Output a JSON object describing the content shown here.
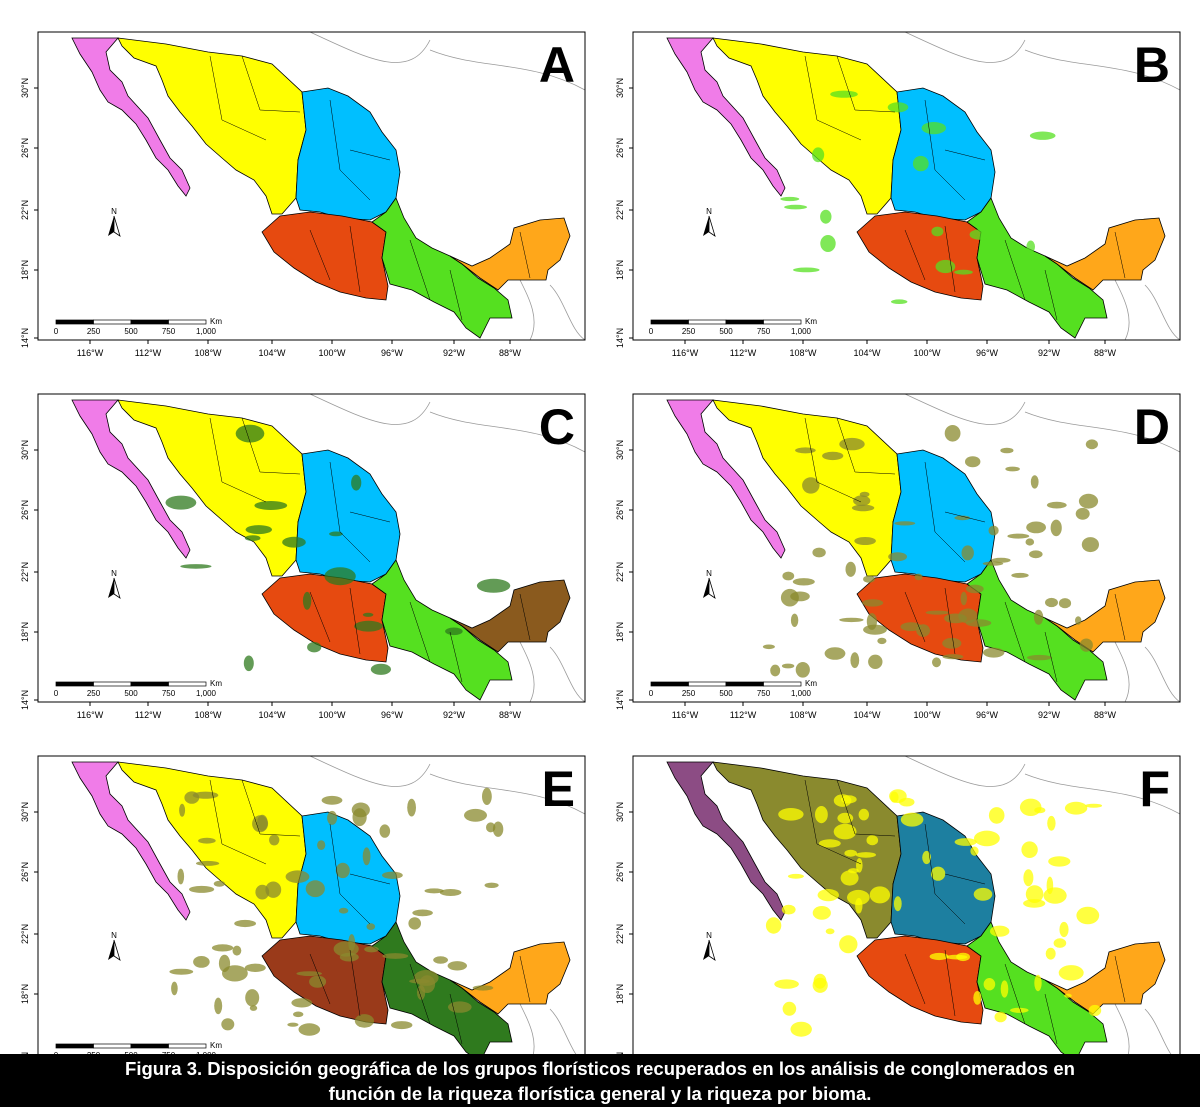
{
  "figure": {
    "caption_line1": "Figura 3. Disposición geográfica de los grupos florísticos recuperados en los análisis de conglomerados en",
    "caption_line2": "función de la riqueza florística general y la riqueza por bioma.",
    "lat_ticks": [
      "30°N",
      "26°N",
      "22°N",
      "18°N",
      "14°N"
    ],
    "lon_ticks": [
      "116°W",
      "112°W",
      "108°W",
      "104°W",
      "100°W",
      "96°W",
      "92°W",
      "88°W"
    ],
    "scale_labels": [
      "0",
      "250",
      "500",
      "750",
      "1,000"
    ],
    "scale_unit": "Km",
    "north_label": "N",
    "colors": {
      "pink": "#f07ce8",
      "yellow": "#ffff00",
      "blue": "#00bfff",
      "red": "#e64a10",
      "green": "#55e020",
      "orange": "#ffa71a",
      "olive": "#8a8a2e",
      "dark_green": "#2f7a1e",
      "brown": "#8a5a1e",
      "dark_blue": "#1d7fa0",
      "dark_purple": "#8c4c84",
      "dark_red": "#9a3a1a",
      "land_outline": "#9a9a9a"
    },
    "panels": [
      {
        "letter": "A",
        "show_lon_axis": true,
        "show_scale": true,
        "scheme": "A"
      },
      {
        "letter": "B",
        "show_lon_axis": true,
        "show_scale": true,
        "scheme": "B"
      },
      {
        "letter": "C",
        "show_lon_axis": true,
        "show_scale": true,
        "scheme": "C"
      },
      {
        "letter": "D",
        "show_lon_axis": true,
        "show_scale": true,
        "scheme": "D"
      },
      {
        "letter": "E",
        "show_lon_axis": false,
        "show_scale": true,
        "scheme": "E"
      },
      {
        "letter": "F",
        "show_lon_axis": false,
        "show_scale": false,
        "scheme": "F"
      }
    ]
  }
}
